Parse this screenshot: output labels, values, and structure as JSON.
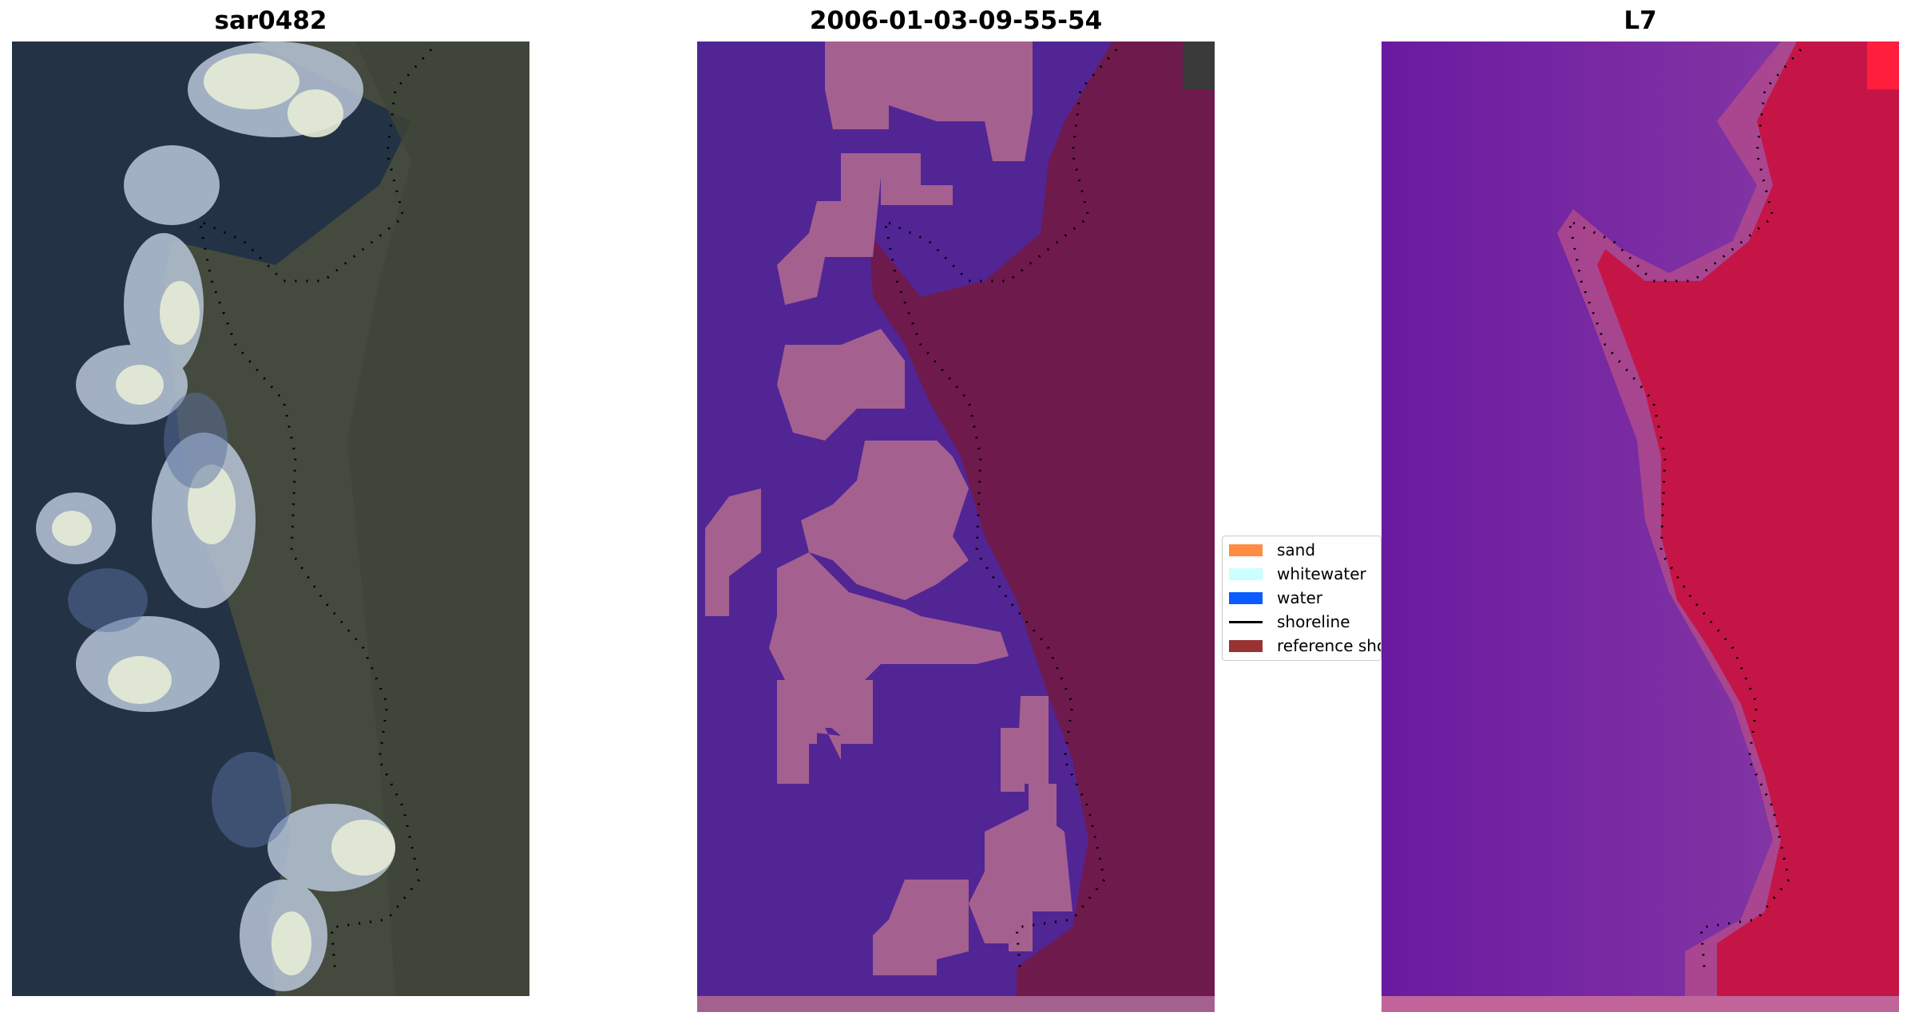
{
  "panels": [
    {
      "title": "sar0482"
    },
    {
      "title": "2006-01-03-09-55-54"
    },
    {
      "title": "L7"
    }
  ],
  "legend": {
    "items": [
      {
        "label": "sand",
        "color": "#ff8c42",
        "kind": "patch"
      },
      {
        "label": "whitewater",
        "color": "#ccffff",
        "kind": "patch"
      },
      {
        "label": "water",
        "color": "#0a5cff",
        "kind": "patch"
      },
      {
        "label": "shoreline",
        "color": "#000000",
        "kind": "line"
      },
      {
        "label": "reference shoreline",
        "color": "#993333",
        "kind": "patch"
      }
    ]
  },
  "colors": {
    "classified_water": "#522595",
    "classified_land": "#a4608f",
    "classified_reference_band": "#6e1a4d",
    "ndwi_low": "#6a1aa0",
    "ndwi_high": "#c8103f"
  }
}
